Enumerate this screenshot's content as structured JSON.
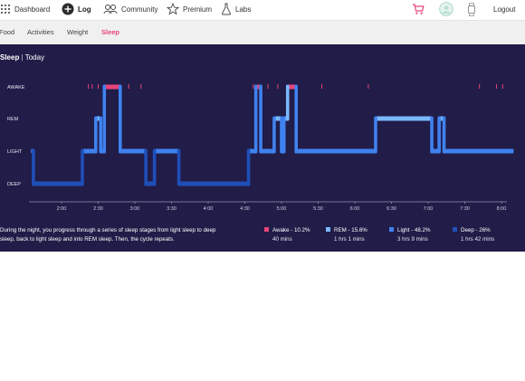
{
  "nav": {
    "items": [
      {
        "label": "Dashboard",
        "icon": "dots-grid-icon"
      },
      {
        "label": "Log",
        "icon": "plus-circle-icon"
      },
      {
        "label": "Community",
        "icon": "people-icon"
      },
      {
        "label": "Premium",
        "icon": "star-icon"
      },
      {
        "label": "Labs",
        "icon": "flask-icon"
      }
    ],
    "logout": "Logout",
    "cart_icon": "shopping-cart-icon",
    "avatar_icon": "avatar-icon",
    "device_icon": "watch-icon",
    "accent": "#e8457a"
  },
  "subnav": {
    "items": [
      "Food",
      "Activities",
      "Weight",
      "Sleep"
    ],
    "active": "Sleep"
  },
  "panel": {
    "title_bold": "Sleep",
    "title_sep": " | ",
    "title_rest": "Today",
    "background": "#211c48"
  },
  "chart_data": {
    "type": "step-line",
    "stages": [
      "AWAKE",
      "REM",
      "LIGHT",
      "DEEP"
    ],
    "stage_colors": {
      "AWAKE": "#e8457a",
      "REM": "#7ab8ff",
      "LIGHT": "#3f82ef",
      "DEEP": "#1f4fb8"
    },
    "x_ticks": [
      "2:00",
      "2:30",
      "3:00",
      "3:30",
      "4:00",
      "4:30",
      "5:00",
      "5:30",
      "6:00",
      "6:30",
      "7:00",
      "7:30",
      "8:00"
    ],
    "segments": [
      {
        "start": "1:35",
        "end": "1:37",
        "stage": "LIGHT"
      },
      {
        "start": "1:37",
        "end": "2:17",
        "stage": "DEEP"
      },
      {
        "start": "2:17",
        "end": "2:28",
        "stage": "LIGHT"
      },
      {
        "start": "2:28",
        "end": "2:32",
        "stage": "REM"
      },
      {
        "start": "2:32",
        "end": "2:35",
        "stage": "LIGHT"
      },
      {
        "start": "2:35",
        "end": "2:48",
        "stage": "AWAKE"
      },
      {
        "start": "2:48",
        "end": "3:09",
        "stage": "LIGHT"
      },
      {
        "start": "3:09",
        "end": "3:16",
        "stage": "DEEP"
      },
      {
        "start": "3:16",
        "end": "3:36",
        "stage": "LIGHT"
      },
      {
        "start": "3:36",
        "end": "4:33",
        "stage": "DEEP"
      },
      {
        "start": "4:33",
        "end": "4:39",
        "stage": "LIGHT"
      },
      {
        "start": "4:39",
        "end": "4:43",
        "stage": "AWAKE"
      },
      {
        "start": "4:43",
        "end": "4:54",
        "stage": "LIGHT"
      },
      {
        "start": "4:54",
        "end": "5:00",
        "stage": "REM"
      },
      {
        "start": "5:00",
        "end": "5:02",
        "stage": "LIGHT"
      },
      {
        "start": "5:02",
        "end": "5:05",
        "stage": "REM"
      },
      {
        "start": "5:05",
        "end": "5:12",
        "stage": "AWAKE"
      },
      {
        "start": "5:12",
        "end": "6:17",
        "stage": "LIGHT"
      },
      {
        "start": "6:17",
        "end": "7:03",
        "stage": "REM"
      },
      {
        "start": "7:03",
        "end": "7:09",
        "stage": "LIGHT"
      },
      {
        "start": "7:09",
        "end": "7:13",
        "stage": "REM"
      },
      {
        "start": "7:13",
        "end": "8:10",
        "stage": "LIGHT"
      }
    ],
    "awake_ticks": [
      "2:22",
      "2:25",
      "2:30",
      "2:36",
      "2:55",
      "3:05",
      "4:37",
      "4:49",
      "4:57",
      "5:33",
      "6:11",
      "7:42",
      "7:56",
      "8:01"
    ]
  },
  "description": {
    "line1": "During the night, you progress through a series of sleep stages from light sleep to deep",
    "line2": "sleep, back to light sleep and into REM sleep. Then, the cycle repeats."
  },
  "legend": [
    {
      "label": "Awake - 10.2%",
      "duration": "40 mins",
      "color": "#e8457a"
    },
    {
      "label": "REM - 15.6%",
      "duration": "1 hrs 1 mins",
      "color": "#7ab8ff"
    },
    {
      "label": "Light - 48.2%",
      "duration": "3 hrs 9 mins",
      "color": "#3f82ef"
    },
    {
      "label": "Deep - 26%",
      "duration": "1 hrs 42 mins",
      "color": "#1f4fb8"
    }
  ]
}
